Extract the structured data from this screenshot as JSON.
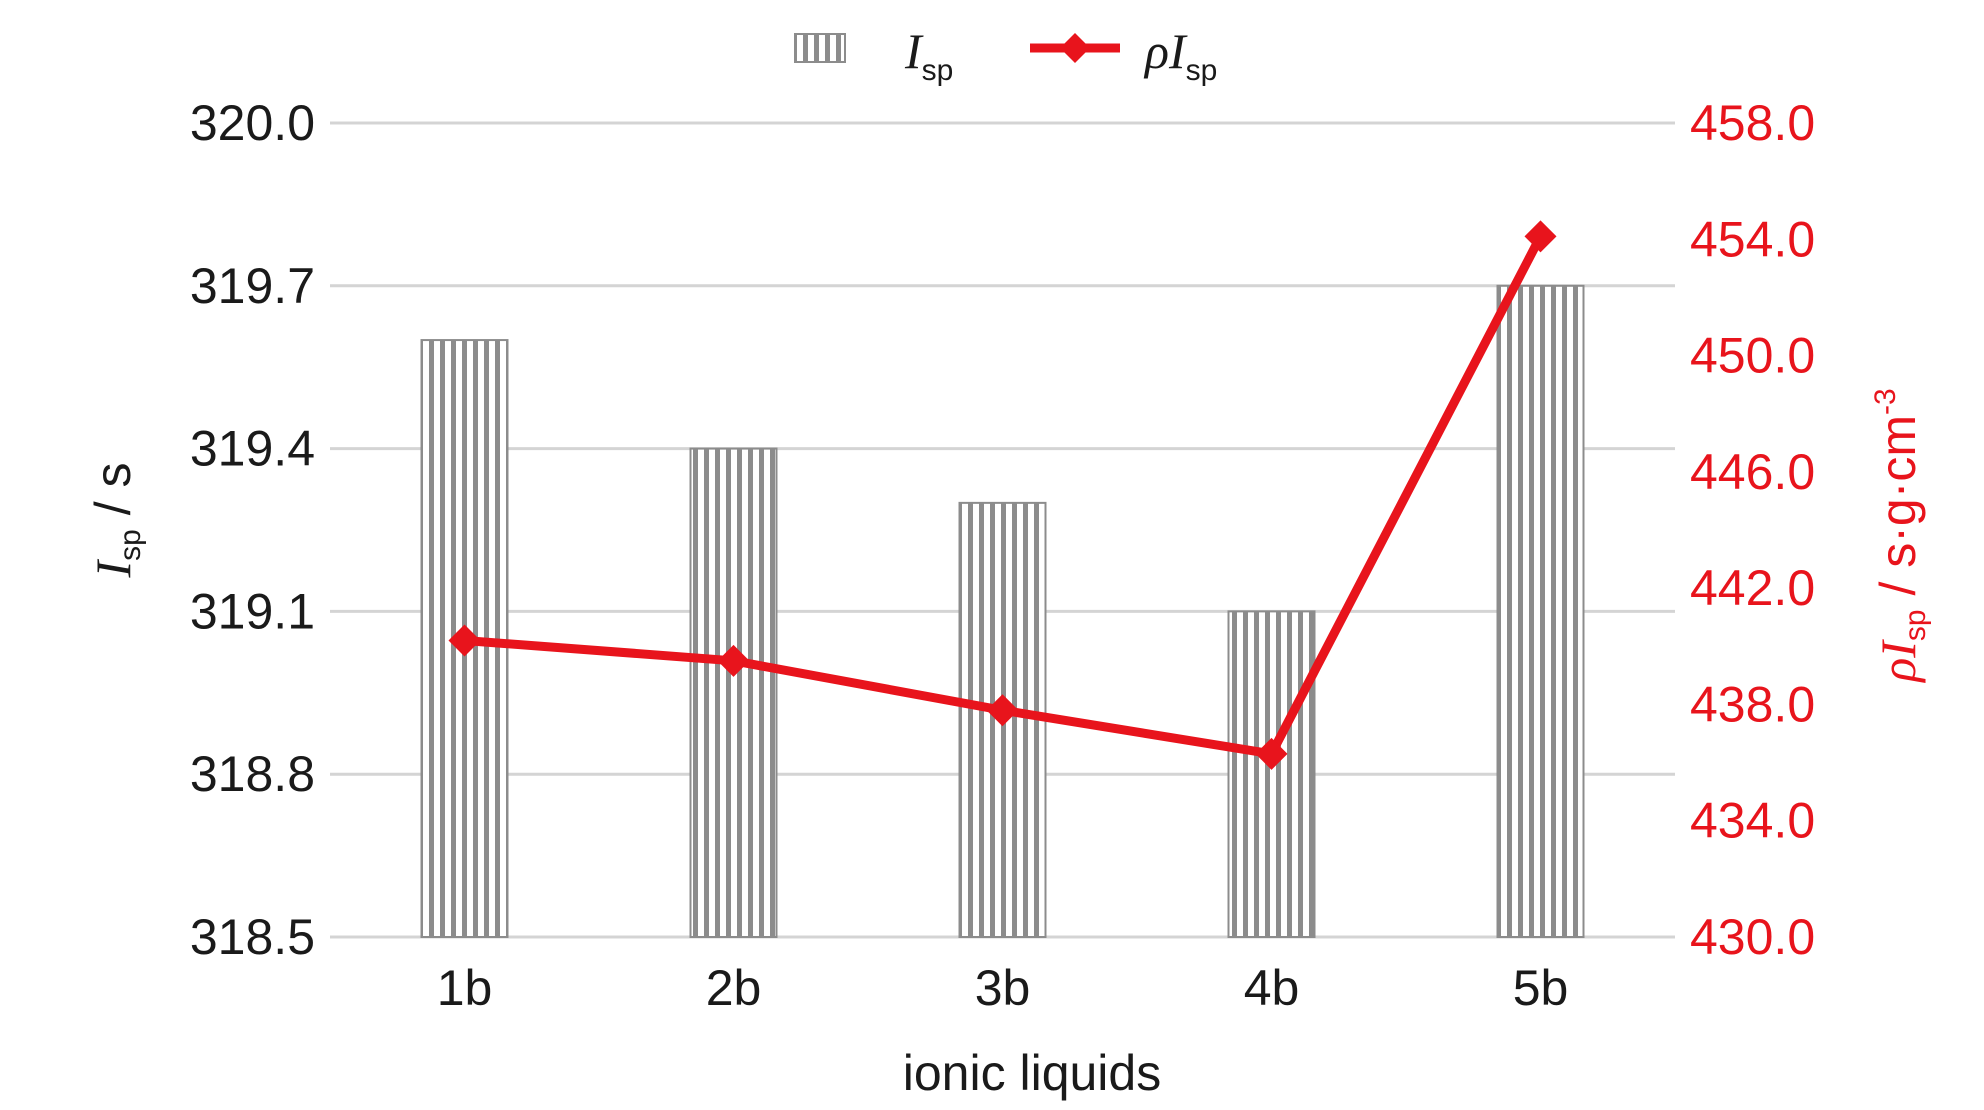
{
  "chart_data": {
    "type": "bar",
    "categories": [
      "1b",
      "2b",
      "3b",
      "4b",
      "5b"
    ],
    "xlabel": "ionic liquids",
    "series": [
      {
        "name": "Isp",
        "kind": "bar",
        "axis": "left",
        "values": [
          319.6,
          319.4,
          319.3,
          319.1,
          319.7
        ],
        "color": "#8c8c8c"
      },
      {
        "name": "ρIsp",
        "kind": "line",
        "axis": "right",
        "values": [
          440.2,
          439.5,
          437.8,
          436.3,
          454.1
        ],
        "color": "#e8141c"
      }
    ],
    "y_left": {
      "label_main": "I",
      "label_sub": "sp",
      "label_unit": " / s",
      "ylim": [
        318.5,
        320.0
      ],
      "ticks": [
        "318.5",
        "318.8",
        "319.1",
        "319.4",
        "319.7",
        "320.0"
      ]
    },
    "y_right": {
      "label_rho": "ρ",
      "label_main": "I",
      "label_sub": "sp",
      "label_unit": " / s·g·cm",
      "label_sup": "-3",
      "ylim": [
        430.0,
        458.0
      ],
      "ticks": [
        "430.0",
        "434.0",
        "438.0",
        "442.0",
        "446.0",
        "450.0",
        "454.0",
        "458.0"
      ],
      "color": "#e8141c"
    },
    "legend": {
      "position": "top-center",
      "bar_label_main": "I",
      "bar_label_sub": "sp",
      "line_label_rho": "ρ",
      "line_label_main": "I",
      "line_label_sub": "sp"
    },
    "grid": true
  }
}
